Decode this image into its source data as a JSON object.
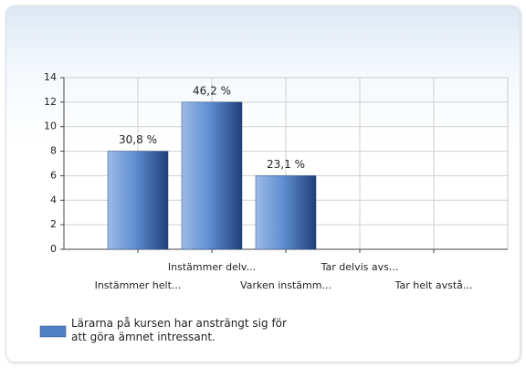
{
  "chart_data": {
    "type": "bar",
    "categories": [
      "Instämmer helt...",
      "Instämmer delv...",
      "Varken instämm...",
      "Tar delvis avs...",
      "Tar helt avstå..."
    ],
    "series": [
      {
        "name": "Lärarna på kursen har ansträngt sig för att göra ämnet intressant.",
        "color": "#4f7fc4",
        "values": [
          8,
          12,
          6,
          0,
          0
        ]
      }
    ],
    "percent_labels": [
      "30,8 %",
      "46,2 %",
      "23,1 %",
      null,
      null
    ],
    "ylim": [
      0,
      14
    ],
    "yticks": [
      0,
      2,
      4,
      6,
      8,
      10,
      12,
      14
    ],
    "grid": true,
    "legend": "bottom-left"
  }
}
